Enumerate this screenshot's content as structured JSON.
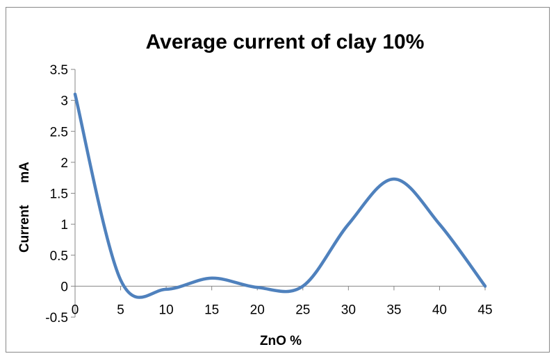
{
  "chart_data": {
    "type": "line",
    "title": "Average current of clay 10%",
    "xlabel": "ZnO %",
    "ylabel": "Current      mA",
    "x": [
      0,
      5,
      10,
      15,
      20,
      25,
      30,
      35,
      40,
      45
    ],
    "series": [
      {
        "values": [
          3.1,
          0.1,
          -0.05,
          0.13,
          -0.02,
          0.0,
          1.0,
          1.73,
          1.0,
          0.0
        ]
      }
    ],
    "x_ticks": [
      "0",
      "5",
      "10",
      "15",
      "20",
      "25",
      "30",
      "35",
      "40",
      "45"
    ],
    "y_ticks": [
      "-0.5",
      "0",
      "0.5",
      "1",
      "1.5",
      "2",
      "2.5",
      "3",
      "3.5"
    ],
    "xlim": [
      0,
      45
    ],
    "ylim": [
      -0.5,
      3.5
    ],
    "grid": false,
    "smooth": true,
    "line_color": "#4F81BD"
  }
}
